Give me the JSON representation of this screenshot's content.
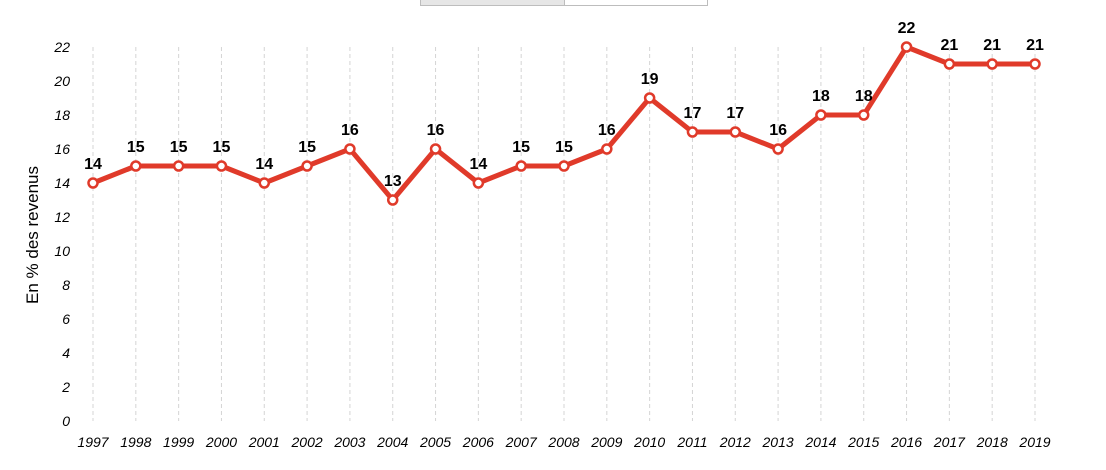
{
  "chart_data": {
    "type": "line",
    "title": "",
    "xlabel": "",
    "ylabel": "En % des revenus",
    "ylim": [
      0,
      22
    ],
    "yticks": [
      0,
      2,
      4,
      6,
      8,
      10,
      12,
      14,
      16,
      18,
      20,
      22
    ],
    "grid": "vertical dashed",
    "categories": [
      "1997",
      "1998",
      "1999",
      "2000",
      "2001",
      "2002",
      "2003",
      "2004",
      "2005",
      "2006",
      "2007",
      "2008",
      "2009",
      "2010",
      "2011",
      "2012",
      "2013",
      "2014",
      "2015",
      "2016",
      "2017",
      "2018",
      "2019"
    ],
    "series": [
      {
        "values": [
          14,
          15,
          15,
          15,
          14,
          15,
          16,
          13,
          16,
          14,
          15,
          15,
          16,
          19,
          17,
          17,
          16,
          18,
          18,
          22,
          21,
          21,
          21
        ],
        "color": "#e03a2a",
        "marker_fill": "#ffffff"
      }
    ],
    "data_labels": true
  },
  "tabs": {
    "active_color": "#e6e6e6"
  }
}
